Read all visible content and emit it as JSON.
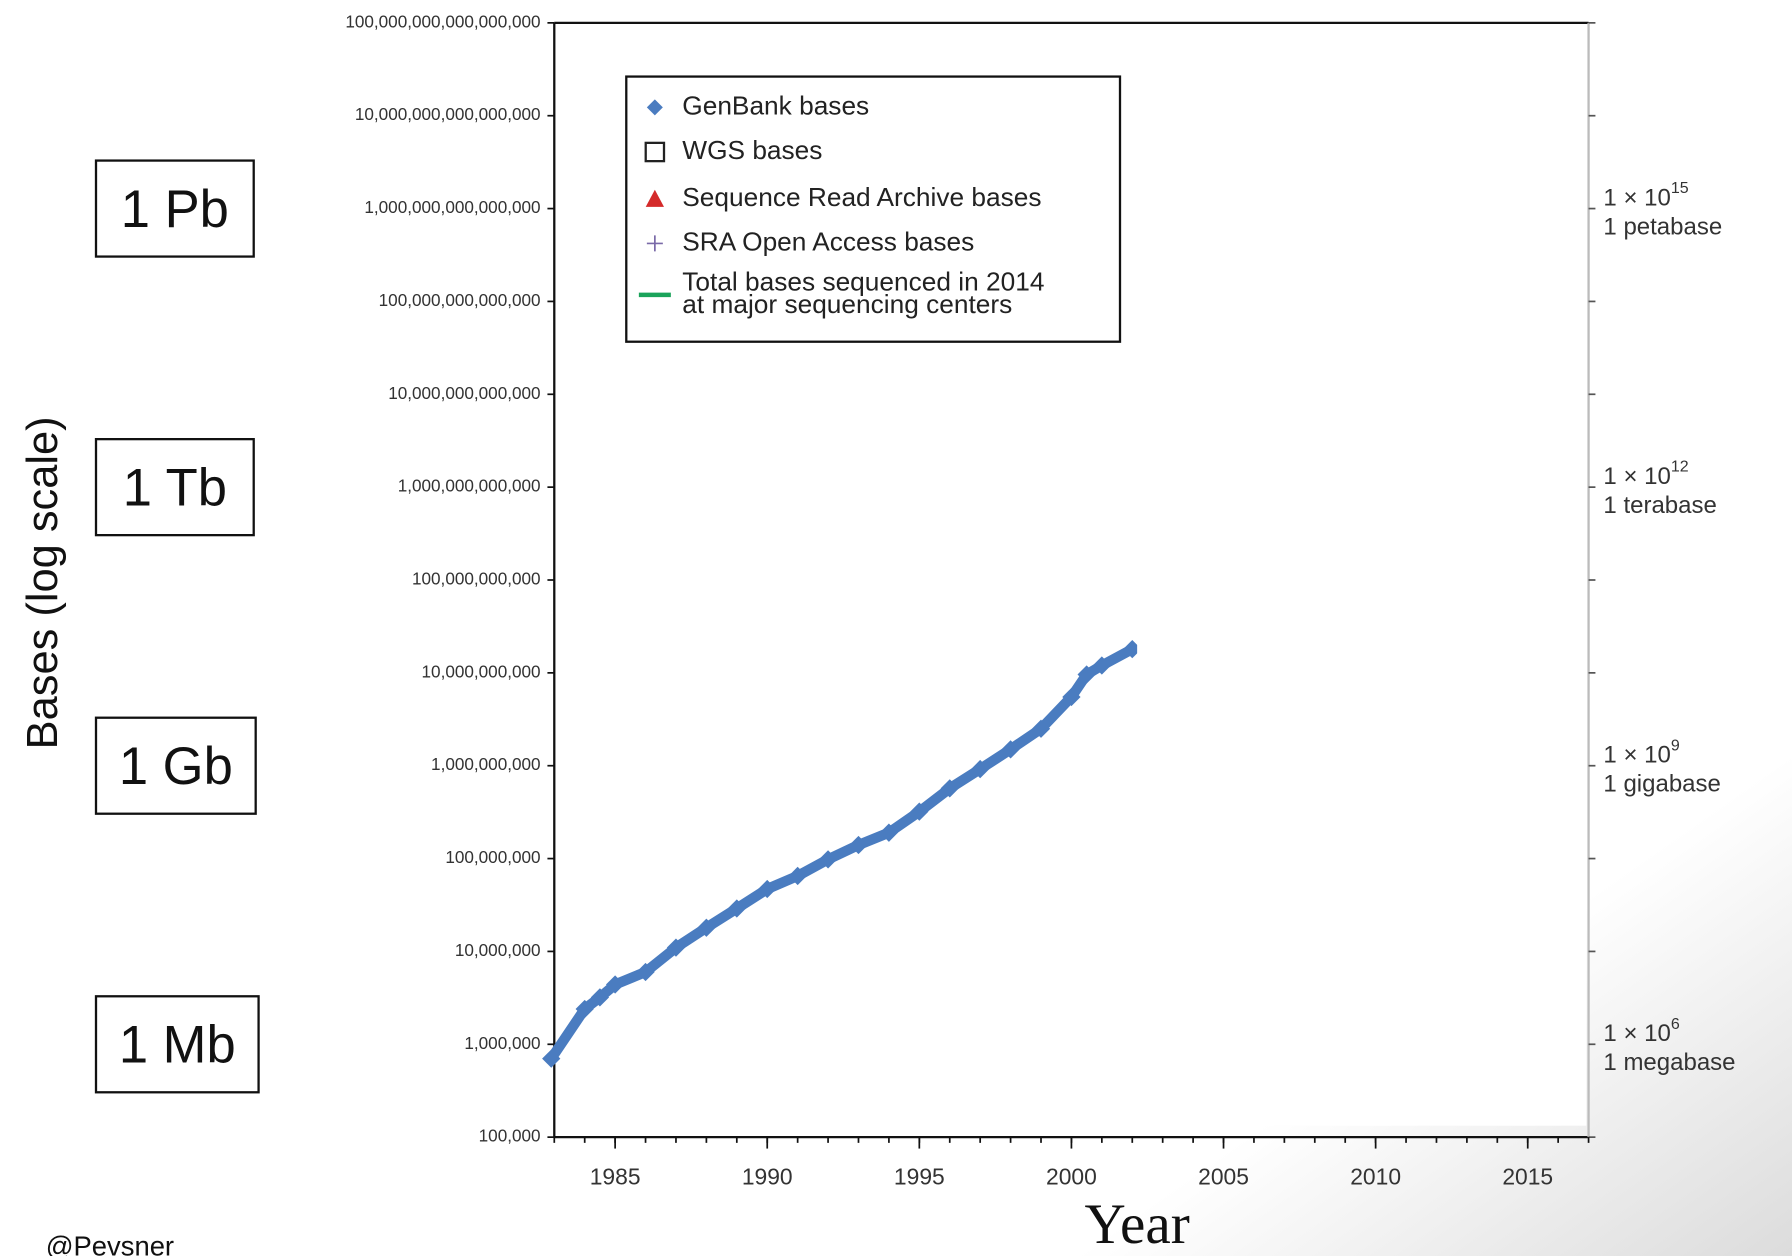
{
  "chart_data": {
    "type": "scatter",
    "y_axis_label": "Bases (log scale)",
    "x_axis_label": "Year",
    "credit": "@Pevsner",
    "log_y": true,
    "xlim": [
      1983,
      2017
    ],
    "ylim": [
      100000,
      100000000000000000
    ],
    "xticks": [
      1985,
      1990,
      1995,
      2000,
      2005,
      2010,
      2015
    ],
    "xminorticks": [
      1983,
      1984,
      1985,
      1986,
      1987,
      1988,
      1989,
      1990,
      1991,
      1992,
      1993,
      1994,
      1995,
      1996,
      1997,
      1998,
      1999,
      2000,
      2001,
      2002,
      2003,
      2004,
      2005,
      2006,
      2007,
      2008,
      2009,
      2010,
      2011,
      2012,
      2013,
      2014,
      2015,
      2016,
      2017
    ],
    "yticks": [
      {
        "value": 100000,
        "label": "100,000"
      },
      {
        "value": 1000000,
        "label": "1,000,000"
      },
      {
        "value": 10000000,
        "label": "10,000,000"
      },
      {
        "value": 100000000,
        "label": "100,000,000"
      },
      {
        "value": 1000000000,
        "label": "1,000,000,000"
      },
      {
        "value": 10000000000,
        "label": "10,000,000,000"
      },
      {
        "value": 100000000000,
        "label": "100,000,000,000"
      },
      {
        "value": 1000000000000,
        "label": "1,000,000,000,000"
      },
      {
        "value": 10000000000000,
        "label": "10,000,000,000,000"
      },
      {
        "value": 100000000000000,
        "label": "100,000,000,000,000"
      },
      {
        "value": 1000000000000000,
        "label": "1,000,000,000,000,000"
      },
      {
        "value": 10000000000000000,
        "label": "10,000,000,000,000,000"
      },
      {
        "value": 100000000000000000,
        "label": "100,000,000,000,000,000"
      }
    ],
    "scale_marks": [
      {
        "value": 1000000000000000,
        "box": "1 Pb",
        "base": "1 × 10",
        "exponent": "15",
        "name": "1 petabase"
      },
      {
        "value": 1000000000000,
        "box": "1 Tb",
        "base": "1 × 10",
        "exponent": "12",
        "name": "1 terabase"
      },
      {
        "value": 1000000000,
        "box": "1 Gb",
        "base": "1 × 10",
        "exponent": "9",
        "name": "1 gigabase"
      },
      {
        "value": 1000000,
        "box": "1 Mb",
        "base": "1 × 10",
        "exponent": "6",
        "name": "1 megabase"
      }
    ],
    "series": [
      {
        "name": "GenBank bases",
        "color": "#4a7cc0",
        "x": [
          1982.9,
          1984,
          1984.5,
          1985,
          1986,
          1987,
          1988,
          1989,
          1990,
          1991,
          1992,
          1993,
          1994,
          1995,
          1996,
          1997,
          1998,
          1999,
          2000,
          2000.5,
          2001,
          2002
        ],
        "values": [
          700000,
          2400000,
          3200000,
          4400000,
          6000000,
          11000000,
          18000000,
          29000000,
          47000000,
          65000000,
          98000000,
          140000000,
          190000000,
          320000000,
          570000000,
          920000000,
          1500000000,
          2500000000,
          5500000000,
          9600000000,
          12000000000,
          18000000000
        ]
      }
    ],
    "legend": [
      {
        "label": "GenBank bases",
        "marker": "diamond",
        "color": "#4a7cc0"
      },
      {
        "label": "WGS bases",
        "marker": "square",
        "color": "#222222"
      },
      {
        "label": "Sequence Read Archive bases",
        "marker": "triangle",
        "color": "#d42a2a"
      },
      {
        "label": "SRA Open Access bases",
        "marker": "plus",
        "color": "#7a6aa8"
      },
      {
        "label": [
          "Total bases sequenced in 2014",
          "at major sequencing centers"
        ],
        "marker": "line",
        "color": "#1aa35a"
      }
    ]
  }
}
